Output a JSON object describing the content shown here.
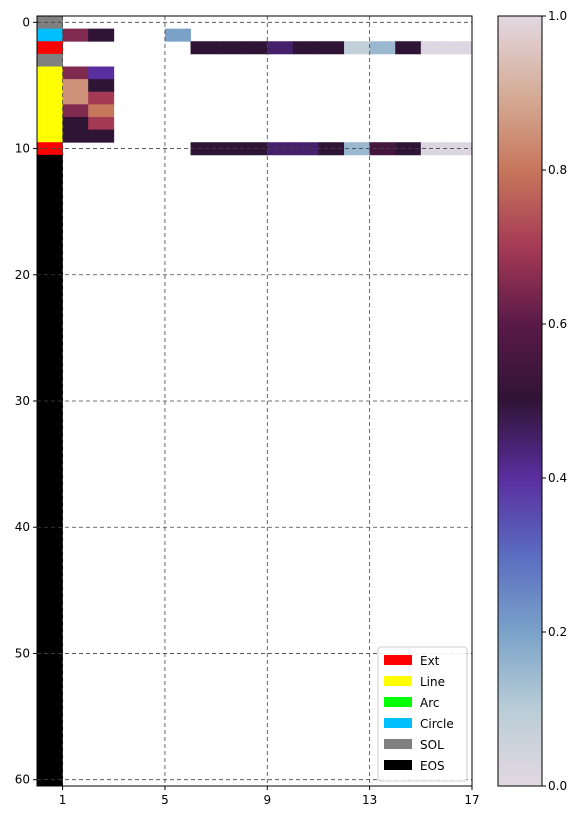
{
  "chart_data": [
    {
      "type": "heatmap",
      "x_ticks": [
        1,
        5,
        9,
        13,
        17
      ],
      "y_ticks": [
        0,
        10,
        20,
        30,
        40,
        50,
        60
      ],
      "xlim": [
        0,
        17
      ],
      "ylim": [
        60.5,
        -0.5
      ],
      "grid": true,
      "legend_position": "lower-right",
      "command_legend": [
        {
          "label": "Ext",
          "color": "#ff0000"
        },
        {
          "label": "Line",
          "color": "#ffff00"
        },
        {
          "label": "Arc",
          "color": "#00ff00"
        },
        {
          "label": "Circle",
          "color": "#00bfff"
        },
        {
          "label": "SOL",
          "color": "#808080"
        },
        {
          "label": "EOS",
          "color": "#000000"
        }
      ],
      "command_column": [
        "SOL",
        "Circle",
        "Ext",
        "SOL",
        "Line",
        "Line",
        "Line",
        "Line",
        "Line",
        "Line",
        "Ext",
        "EOS",
        "EOS",
        "EOS",
        "EOS",
        "EOS",
        "EOS",
        "EOS",
        "EOS",
        "EOS",
        "EOS",
        "EOS",
        "EOS",
        "EOS",
        "EOS",
        "EOS",
        "EOS",
        "EOS",
        "EOS",
        "EOS",
        "EOS",
        "EOS",
        "EOS",
        "EOS",
        "EOS",
        "EOS",
        "EOS",
        "EOS",
        "EOS",
        "EOS",
        "EOS",
        "EOS",
        "EOS",
        "EOS",
        "EOS",
        "EOS",
        "EOS",
        "EOS",
        "EOS",
        "EOS",
        "EOS",
        "EOS",
        "EOS",
        "EOS",
        "EOS",
        "EOS",
        "EOS",
        "EOS",
        "EOS",
        "EOS",
        "EOS"
      ],
      "param_cells": [
        {
          "row": 1,
          "col": 1,
          "value": 0.65
        },
        {
          "row": 1,
          "col": 2,
          "value": 0.5
        },
        {
          "row": 1,
          "col": 5,
          "value": 0.2
        },
        {
          "row": 2,
          "col": 6,
          "value": 0.5
        },
        {
          "row": 2,
          "col": 7,
          "value": 0.5
        },
        {
          "row": 2,
          "col": 8,
          "value": 0.5
        },
        {
          "row": 2,
          "col": 9,
          "value": 0.45
        },
        {
          "row": 2,
          "col": 10,
          "value": 0.5
        },
        {
          "row": 2,
          "col": 11,
          "value": 0.5
        },
        {
          "row": 2,
          "col": 12,
          "value": 0.08
        },
        {
          "row": 2,
          "col": 13,
          "value": 0.15
        },
        {
          "row": 2,
          "col": 14,
          "value": 0.5
        },
        {
          "row": 2,
          "col": 15,
          "value": 0.02
        },
        {
          "row": 2,
          "col": 16,
          "value": 0.02
        },
        {
          "row": 4,
          "col": 1,
          "value": 0.65
        },
        {
          "row": 4,
          "col": 2,
          "value": 0.4
        },
        {
          "row": 5,
          "col": 1,
          "value": 0.85
        },
        {
          "row": 5,
          "col": 2,
          "value": 0.5
        },
        {
          "row": 6,
          "col": 1,
          "value": 0.85
        },
        {
          "row": 6,
          "col": 2,
          "value": 0.7
        },
        {
          "row": 7,
          "col": 1,
          "value": 0.65
        },
        {
          "row": 7,
          "col": 2,
          "value": 0.8
        },
        {
          "row": 8,
          "col": 1,
          "value": 0.5
        },
        {
          "row": 8,
          "col": 2,
          "value": 0.7
        },
        {
          "row": 9,
          "col": 1,
          "value": 0.5
        },
        {
          "row": 9,
          "col": 2,
          "value": 0.5
        },
        {
          "row": 10,
          "col": 6,
          "value": 0.5
        },
        {
          "row": 10,
          "col": 7,
          "value": 0.5
        },
        {
          "row": 10,
          "col": 8,
          "value": 0.5
        },
        {
          "row": 10,
          "col": 9,
          "value": 0.45
        },
        {
          "row": 10,
          "col": 10,
          "value": 0.45
        },
        {
          "row": 10,
          "col": 11,
          "value": 0.5
        },
        {
          "row": 10,
          "col": 12,
          "value": 0.15
        },
        {
          "row": 10,
          "col": 13,
          "value": 0.55
        },
        {
          "row": 10,
          "col": 14,
          "value": 0.5
        },
        {
          "row": 10,
          "col": 15,
          "value": 0.02
        },
        {
          "row": 10,
          "col": 16,
          "value": 0.02
        }
      ]
    },
    {
      "type": "colorbar",
      "range": [
        0.0,
        1.0
      ],
      "ticks": [
        "0.0",
        "0.2",
        "0.4",
        "0.6",
        "0.8",
        "1.0"
      ],
      "colormap_stops": [
        {
          "v": 0.0,
          "color": "#e3d8e2"
        },
        {
          "v": 0.1,
          "color": "#b9cdd6"
        },
        {
          "v": 0.2,
          "color": "#7aa2c9"
        },
        {
          "v": 0.3,
          "color": "#5a6cc0"
        },
        {
          "v": 0.4,
          "color": "#5a2e9f"
        },
        {
          "v": 0.5,
          "color": "#2f1436"
        },
        {
          "v": 0.6,
          "color": "#5a1a48"
        },
        {
          "v": 0.7,
          "color": "#a53a55"
        },
        {
          "v": 0.8,
          "color": "#c7775c"
        },
        {
          "v": 0.9,
          "color": "#d5ad98"
        },
        {
          "v": 1.0,
          "color": "#e3d8e2"
        }
      ]
    }
  ]
}
